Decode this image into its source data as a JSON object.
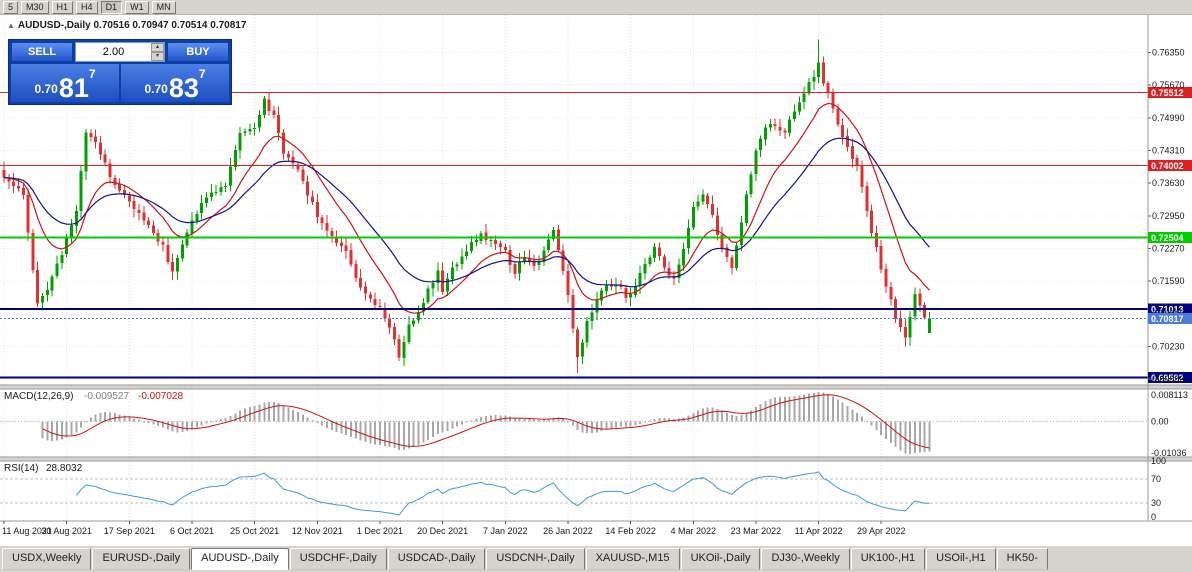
{
  "icons": {
    "marker": "▲",
    "spin_up": "▴",
    "spin_down": "▾"
  },
  "toolbar": {
    "periods": [
      "5",
      "M30",
      "H1",
      "H4",
      "D1",
      "W1",
      "MN"
    ],
    "active": "D1"
  },
  "chart": {
    "header_text": "AUDUSD-,Daily 0.70516 0.70947 0.70514 0.70817"
  },
  "trade_panel": {
    "sell_label": "SELL",
    "buy_label": "BUY",
    "volume": "2.00",
    "sell_price": {
      "small": "0.70",
      "big": "81",
      "sup": "7"
    },
    "buy_price": {
      "small": "0.70",
      "big": "83",
      "sup": "7"
    }
  },
  "chart_data": {
    "type": "candlestick",
    "symbol": "AUDUSD-,Daily",
    "x_labels": [
      [
        0,
        "11 Aug 2021"
      ],
      [
        13,
        "30 Aug 2021"
      ],
      [
        26,
        "17 Sep 2021"
      ],
      [
        39,
        "6 Oct 2021"
      ],
      [
        52,
        "25 Oct 2021"
      ],
      [
        65,
        "12 Nov 2021"
      ],
      [
        78,
        "1 Dec 2021"
      ],
      [
        91,
        "20 Dec 2021"
      ],
      [
        104,
        "7 Jan 2022"
      ],
      [
        117,
        "26 Jan 2022"
      ],
      [
        130,
        "14 Feb 2022"
      ],
      [
        143,
        "4 Mar 2022"
      ],
      [
        156,
        "23 Mar 2022"
      ],
      [
        169,
        "11 Apr 2022"
      ],
      [
        182,
        "29 Apr 2022"
      ]
    ],
    "y_ticks": [
      "0.76350",
      "0.75670",
      "0.74990",
      "0.74310",
      "0.73630",
      "0.72950",
      "0.72270",
      "0.71590",
      "0.70910",
      "0.70230",
      "0.69550"
    ],
    "price_range": {
      "max": 0.7713,
      "min": 0.6943
    },
    "n_candles": 193,
    "waypoints": [
      [
        0,
        0.7375
      ],
      [
        2,
        0.735
      ],
      [
        4,
        0.7345
      ],
      [
        7,
        0.7106
      ],
      [
        9,
        0.714
      ],
      [
        13,
        0.7245
      ],
      [
        15,
        0.731
      ],
      [
        17,
        0.747
      ],
      [
        19,
        0.7445
      ],
      [
        22,
        0.738
      ],
      [
        26,
        0.7325
      ],
      [
        30,
        0.727
      ],
      [
        33,
        0.723
      ],
      [
        35,
        0.718
      ],
      [
        37,
        0.7235
      ],
      [
        39,
        0.729
      ],
      [
        43,
        0.7345
      ],
      [
        46,
        0.736
      ],
      [
        49,
        0.747
      ],
      [
        52,
        0.7478
      ],
      [
        54,
        0.7535
      ],
      [
        56,
        0.7505
      ],
      [
        58,
        0.743
      ],
      [
        61,
        0.739
      ],
      [
        63,
        0.734
      ],
      [
        65,
        0.7295
      ],
      [
        68,
        0.7255
      ],
      [
        71,
        0.7225
      ],
      [
        74,
        0.7145
      ],
      [
        76,
        0.712
      ],
      [
        78,
        0.71
      ],
      [
        80,
        0.706
      ],
      [
        82,
        0.7005
      ],
      [
        84,
        0.7065
      ],
      [
        86,
        0.7095
      ],
      [
        88,
        0.7145
      ],
      [
        90,
        0.7175
      ],
      [
        91,
        0.713
      ],
      [
        93,
        0.7185
      ],
      [
        96,
        0.7225
      ],
      [
        99,
        0.7255
      ],
      [
        102,
        0.724
      ],
      [
        104,
        0.722
      ],
      [
        106,
        0.717
      ],
      [
        108,
        0.7215
      ],
      [
        110,
        0.7185
      ],
      [
        112,
        0.7225
      ],
      [
        114,
        0.7265
      ],
      [
        116,
        0.7185
      ],
      [
        117,
        0.7135
      ],
      [
        119,
        0.7
      ],
      [
        121,
        0.7075
      ],
      [
        123,
        0.7125
      ],
      [
        125,
        0.7145
      ],
      [
        127,
        0.7155
      ],
      [
        129,
        0.713
      ],
      [
        131,
        0.7145
      ],
      [
        133,
        0.7195
      ],
      [
        135,
        0.7235
      ],
      [
        137,
        0.7185
      ],
      [
        139,
        0.7165
      ],
      [
        141,
        0.7225
      ],
      [
        143,
        0.731
      ],
      [
        145,
        0.7345
      ],
      [
        147,
        0.729
      ],
      [
        149,
        0.7225
      ],
      [
        151,
        0.719
      ],
      [
        153,
        0.7285
      ],
      [
        155,
        0.7385
      ],
      [
        156,
        0.7425
      ],
      [
        158,
        0.748
      ],
      [
        160,
        0.748
      ],
      [
        162,
        0.747
      ],
      [
        164,
        0.751
      ],
      [
        166,
        0.7545
      ],
      [
        168,
        0.759
      ],
      [
        169,
        0.762
      ],
      [
        170,
        0.757
      ],
      [
        171,
        0.755
      ],
      [
        173,
        0.748
      ],
      [
        175,
        0.744
      ],
      [
        177,
        0.74
      ],
      [
        179,
        0.73
      ],
      [
        181,
        0.723
      ],
      [
        183,
        0.715
      ],
      [
        185,
        0.708
      ],
      [
        187,
        0.7035
      ],
      [
        189,
        0.713
      ],
      [
        191,
        0.709
      ],
      [
        192,
        0.70817
      ]
    ],
    "wick_overrides": [
      {
        "i": 7,
        "low": 0.7106
      },
      {
        "i": 82,
        "low": 0.6993
      },
      {
        "i": 119,
        "low": 0.6968
      },
      {
        "i": 169,
        "high": 0.7662
      },
      {
        "i": 187,
        "low": 0.7023
      }
    ],
    "last_candle": {
      "o": 0.70516,
      "h": 0.70947,
      "l": 0.70514,
      "c": 0.70817
    },
    "ma": [
      {
        "type": "ema",
        "period": 12
      },
      {
        "type": "ema",
        "period": 26
      }
    ],
    "levels": [
      {
        "price": 0.75512,
        "label": "0.75512",
        "color": "#e02020",
        "width": 1
      },
      {
        "price": 0.74002,
        "label": "0.74002",
        "color": "#e02020",
        "width": 1
      },
      {
        "price": 0.72504,
        "label": "0.72504",
        "color": "#00cc00",
        "width": 2
      },
      {
        "price": 0.71013,
        "label": "0.71013",
        "color": "#000080",
        "width": 2
      },
      {
        "price": 0.69582,
        "label": "0.69582",
        "color": "#000080",
        "width": 2
      }
    ],
    "bid": {
      "price": 0.70817,
      "label": "0.70817",
      "color": "#4a7cd8"
    },
    "macd": {
      "label": "MACD(12,26,9)",
      "value_main": "-0.009527",
      "value_signal": "-0.007028",
      "axis_max": "0.008113",
      "axis_zero": "0.00",
      "axis_min": "-0.01036",
      "params": [
        12,
        26,
        9
      ]
    },
    "rsi": {
      "label": "RSI(14)",
      "value": "28.8032",
      "period": 14,
      "levels": [
        100,
        70,
        30,
        0
      ]
    },
    "colors": {
      "up": "#00a000",
      "down": "#e03030",
      "ma_fast": "#cc1414",
      "ma_slow": "#141488",
      "macd_hist": "#a8a8a8",
      "macd_signal": "#cc1414",
      "rsi": "#3d9bd5",
      "grid": "#e0e0e0",
      "hgrid": "#ededed",
      "axis_text": "#1a1a1a",
      "separator": "#9a9a9a"
    }
  },
  "tabs": {
    "items": [
      {
        "label": "USDX,Weekly"
      },
      {
        "label": "EURUSD-,Daily"
      },
      {
        "label": "AUDUSD-,Daily",
        "active": true
      },
      {
        "label": "USDCHF-,Daily"
      },
      {
        "label": "USDCAD-,Daily"
      },
      {
        "label": "USDCNH-,Daily"
      },
      {
        "label": "XAUUSD-,M15"
      },
      {
        "label": "UKOil-,Daily"
      },
      {
        "label": "DJ30-,Weekly"
      },
      {
        "label": "UK100-,H1"
      },
      {
        "label": "USOil-,H1"
      },
      {
        "label": "HK50-"
      }
    ]
  }
}
